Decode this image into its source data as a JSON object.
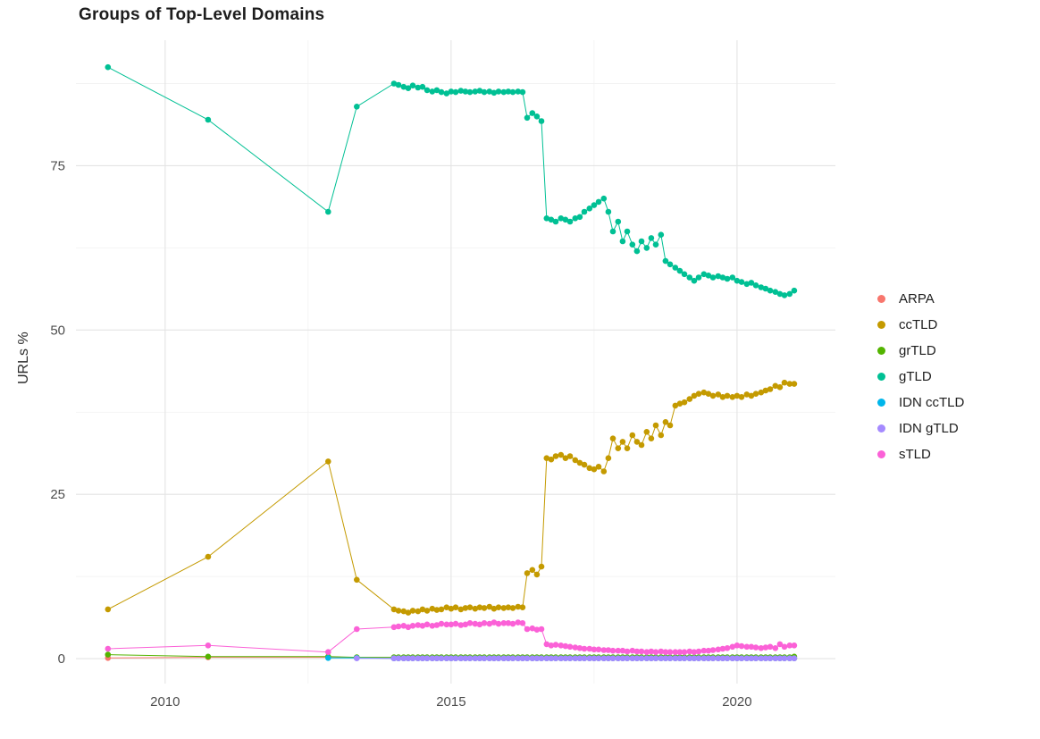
{
  "chart_data": {
    "type": "line",
    "title": "Groups of Top-Level Domains",
    "xlabel": "",
    "ylabel": "URLs %",
    "grid": true,
    "legend_position": "right",
    "x_ticks": [
      2010,
      2015,
      2020
    ],
    "y_ticks": [
      0,
      25,
      50,
      75
    ],
    "x_minor": [
      2012.5,
      2017.5
    ],
    "y_minor": [
      12.5,
      37.5,
      62.5,
      87.5
    ],
    "xlim": [
      2008.44,
      2021.72
    ],
    "ylim": [
      -3.8,
      94.1
    ],
    "x": [
      2009.0,
      2010.75,
      2012.85,
      2013.35,
      2014.0,
      2014.08,
      2014.17,
      2014.25,
      2014.33,
      2014.42,
      2014.5,
      2014.58,
      2014.67,
      2014.75,
      2014.83,
      2014.92,
      2015.0,
      2015.08,
      2015.17,
      2015.25,
      2015.33,
      2015.42,
      2015.5,
      2015.58,
      2015.67,
      2015.75,
      2015.83,
      2015.92,
      2016.0,
      2016.08,
      2016.17,
      2016.25,
      2016.33,
      2016.42,
      2016.5,
      2016.58,
      2016.67,
      2016.75,
      2016.83,
      2016.92,
      2017.0,
      2017.08,
      2017.17,
      2017.25,
      2017.33,
      2017.42,
      2017.5,
      2017.58,
      2017.67,
      2017.75,
      2017.83,
      2017.92,
      2018.0,
      2018.08,
      2018.17,
      2018.25,
      2018.33,
      2018.42,
      2018.5,
      2018.58,
      2018.67,
      2018.75,
      2018.83,
      2018.92,
      2019.0,
      2019.08,
      2019.17,
      2019.25,
      2019.33,
      2019.42,
      2019.5,
      2019.58,
      2019.67,
      2019.75,
      2019.83,
      2019.92,
      2020.0,
      2020.08,
      2020.17,
      2020.25,
      2020.33,
      2020.42,
      2020.5,
      2020.58,
      2020.67,
      2020.75,
      2020.83,
      2020.92,
      2021.0
    ],
    "series": [
      {
        "name": "ARPA",
        "color": "#F8766D",
        "values": [
          0.1,
          0.2,
          0.2,
          0.1,
          0.05,
          0.05,
          0.05,
          0.05,
          0.05,
          0.05,
          0.05,
          0.05,
          0.05,
          0.05,
          0.05,
          0.05,
          0.05,
          0.05,
          0.05,
          0.05,
          0.05,
          0.05,
          0.05,
          0.05,
          0.05,
          0.05,
          0.05,
          0.05,
          0.05,
          0.05,
          0.05,
          0.05,
          0.05,
          0.05,
          0.05,
          0.05,
          0.05,
          0.05,
          0.05,
          0.05,
          0.05,
          0.05,
          0.05,
          0.05,
          0.05,
          0.05,
          0.05,
          0.05,
          0.05,
          0.05,
          0.05,
          0.05,
          0.05,
          0.05,
          0.05,
          0.05,
          0.05,
          0.05,
          0.05,
          0.05,
          0.05,
          0.05,
          0.05,
          0.05,
          0.05,
          0.05,
          0.05,
          0.05,
          0.05,
          0.05,
          0.05,
          0.05,
          0.05,
          0.05,
          0.05,
          0.05,
          0.05,
          0.05,
          0.05,
          0.05,
          0.05,
          0.05,
          0.05,
          0.05,
          0.05,
          0.05,
          0.05,
          0.05,
          0.05
        ]
      },
      {
        "name": "ccTLD",
        "color": "#C49A00",
        "values": [
          7.5,
          15.5,
          30.0,
          12.0,
          7.5,
          7.3,
          7.2,
          7.0,
          7.3,
          7.2,
          7.5,
          7.3,
          7.6,
          7.4,
          7.5,
          7.8,
          7.6,
          7.8,
          7.5,
          7.7,
          7.8,
          7.6,
          7.8,
          7.7,
          7.9,
          7.6,
          7.8,
          7.7,
          7.8,
          7.7,
          7.9,
          7.8,
          13.0,
          13.5,
          12.8,
          14.0,
          30.5,
          30.3,
          30.8,
          31.0,
          30.5,
          30.8,
          30.2,
          29.8,
          29.5,
          29.0,
          28.8,
          29.2,
          28.5,
          30.5,
          33.5,
          32.0,
          33.0,
          32.0,
          34.0,
          33.0,
          32.5,
          34.5,
          33.5,
          35.5,
          34.0,
          36.0,
          35.5,
          38.5,
          38.8,
          39.0,
          39.5,
          40.0,
          40.3,
          40.5,
          40.3,
          40.0,
          40.2,
          39.8,
          40.0,
          39.8,
          40.0,
          39.8,
          40.2,
          40.0,
          40.3,
          40.5,
          40.8,
          41.0,
          41.5,
          41.3,
          42.0,
          41.8,
          41.8
        ]
      },
      {
        "name": "grTLD",
        "color": "#53B400",
        "values": [
          0.6,
          0.3,
          0.3,
          0.2,
          0.2,
          0.2,
          0.2,
          0.2,
          0.2,
          0.2,
          0.2,
          0.2,
          0.2,
          0.2,
          0.2,
          0.2,
          0.2,
          0.2,
          0.2,
          0.2,
          0.2,
          0.2,
          0.2,
          0.2,
          0.2,
          0.2,
          0.2,
          0.2,
          0.2,
          0.2,
          0.2,
          0.2,
          0.2,
          0.2,
          0.2,
          0.2,
          0.2,
          0.2,
          0.2,
          0.2,
          0.2,
          0.2,
          0.2,
          0.2,
          0.2,
          0.2,
          0.2,
          0.2,
          0.2,
          0.2,
          0.2,
          0.2,
          0.2,
          0.2,
          0.2,
          0.2,
          0.2,
          0.2,
          0.2,
          0.2,
          0.2,
          0.2,
          0.2,
          0.2,
          0.2,
          0.2,
          0.2,
          0.2,
          0.2,
          0.2,
          0.2,
          0.2,
          0.2,
          0.2,
          0.2,
          0.2,
          0.2,
          0.2,
          0.2,
          0.2,
          0.2,
          0.2,
          0.2,
          0.2,
          0.2,
          0.2,
          0.2,
          0.2,
          0.3
        ]
      },
      {
        "name": "gTLD",
        "color": "#00C094",
        "values": [
          90.0,
          82.0,
          68.0,
          84.0,
          87.5,
          87.3,
          87.0,
          86.8,
          87.2,
          86.9,
          87.0,
          86.5,
          86.3,
          86.5,
          86.2,
          86.0,
          86.3,
          86.2,
          86.4,
          86.3,
          86.2,
          86.3,
          86.4,
          86.2,
          86.3,
          86.1,
          86.3,
          86.2,
          86.3,
          86.2,
          86.3,
          86.2,
          82.3,
          83.0,
          82.5,
          81.8,
          67.0,
          66.8,
          66.5,
          67.0,
          66.8,
          66.5,
          67.0,
          67.2,
          68.0,
          68.5,
          69.0,
          69.5,
          70.0,
          68.0,
          65.0,
          66.5,
          63.5,
          65.0,
          63.0,
          62.0,
          63.5,
          62.5,
          64.0,
          63.0,
          64.5,
          60.5,
          60.0,
          59.5,
          59.0,
          58.5,
          58.0,
          57.5,
          58.0,
          58.5,
          58.3,
          58.0,
          58.2,
          58.0,
          57.8,
          58.0,
          57.5,
          57.3,
          57.0,
          57.2,
          56.8,
          56.5,
          56.3,
          56.0,
          55.8,
          55.5,
          55.3,
          55.5,
          56.0
        ]
      },
      {
        "name": "IDN ccTLD",
        "color": "#00B6EB",
        "values": [
          null,
          null,
          0.1,
          0.1,
          0.05,
          0.05,
          0.05,
          0.05,
          0.05,
          0.05,
          0.05,
          0.05,
          0.05,
          0.05,
          0.05,
          0.05,
          0.05,
          0.05,
          0.05,
          0.05,
          0.05,
          0.05,
          0.05,
          0.05,
          0.05,
          0.05,
          0.05,
          0.05,
          0.05,
          0.05,
          0.05,
          0.05,
          0.05,
          0.05,
          0.05,
          0.05,
          0.05,
          0.05,
          0.05,
          0.05,
          0.05,
          0.05,
          0.05,
          0.05,
          0.05,
          0.05,
          0.05,
          0.05,
          0.05,
          0.05,
          0.05,
          0.05,
          0.05,
          0.05,
          0.05,
          0.05,
          0.05,
          0.05,
          0.05,
          0.05,
          0.05,
          0.05,
          0.05,
          0.05,
          0.05,
          0.05,
          0.05,
          0.05,
          0.05,
          0.05,
          0.05,
          0.05,
          0.05,
          0.05,
          0.05,
          0.05,
          0.05,
          0.05,
          0.05,
          0.05,
          0.05,
          0.05,
          0.05,
          0.05,
          0.05,
          0.05,
          0.05,
          0.05,
          0.05
        ]
      },
      {
        "name": "IDN gTLD",
        "color": "#A58AFF",
        "values": [
          null,
          null,
          null,
          0.05,
          0.05,
          0.05,
          0.05,
          0.05,
          0.05,
          0.05,
          0.05,
          0.05,
          0.05,
          0.05,
          0.05,
          0.05,
          0.05,
          0.05,
          0.05,
          0.05,
          0.05,
          0.05,
          0.05,
          0.05,
          0.05,
          0.05,
          0.05,
          0.05,
          0.05,
          0.05,
          0.05,
          0.05,
          0.05,
          0.05,
          0.05,
          0.05,
          0.05,
          0.05,
          0.05,
          0.05,
          0.05,
          0.05,
          0.05,
          0.05,
          0.05,
          0.05,
          0.05,
          0.05,
          0.05,
          0.05,
          0.05,
          0.05,
          0.05,
          0.05,
          0.05,
          0.05,
          0.05,
          0.05,
          0.05,
          0.05,
          0.05,
          0.05,
          0.05,
          0.05,
          0.05,
          0.05,
          0.05,
          0.05,
          0.05,
          0.05,
          0.05,
          0.05,
          0.05,
          0.05,
          0.05,
          0.05,
          0.05,
          0.05,
          0.05,
          0.05,
          0.05,
          0.05,
          0.05,
          0.05,
          0.05,
          0.05,
          0.05,
          0.05,
          0.05
        ]
      },
      {
        "name": "sTLD",
        "color": "#FB61D7",
        "values": [
          1.5,
          2.0,
          1.0,
          4.5,
          4.8,
          4.9,
          5.0,
          4.8,
          5.0,
          5.1,
          5.0,
          5.2,
          5.0,
          5.1,
          5.3,
          5.2,
          5.2,
          5.3,
          5.1,
          5.2,
          5.4,
          5.3,
          5.2,
          5.4,
          5.3,
          5.5,
          5.3,
          5.4,
          5.4,
          5.3,
          5.5,
          5.4,
          4.5,
          4.6,
          4.4,
          4.5,
          2.2,
          2.0,
          2.1,
          2.0,
          1.9,
          1.8,
          1.7,
          1.6,
          1.5,
          1.5,
          1.4,
          1.4,
          1.3,
          1.3,
          1.2,
          1.2,
          1.2,
          1.1,
          1.2,
          1.1,
          1.1,
          1.0,
          1.1,
          1.0,
          1.1,
          1.0,
          1.0,
          1.0,
          1.0,
          1.0,
          1.1,
          1.0,
          1.1,
          1.2,
          1.2,
          1.3,
          1.4,
          1.5,
          1.6,
          1.8,
          2.0,
          1.9,
          1.8,
          1.8,
          1.7,
          1.6,
          1.7,
          1.8,
          1.6,
          2.2,
          1.8,
          2.0,
          2.0
        ]
      }
    ],
    "style": {
      "grid_major_color": "#e4e4e4",
      "grid_minor_color": "#f1f1f1",
      "tick_label_color": "#4d4d4d",
      "title_color": "#1d1d1d",
      "background": "#ffffff",
      "point_radius": 3.3,
      "line_width": 1
    }
  }
}
